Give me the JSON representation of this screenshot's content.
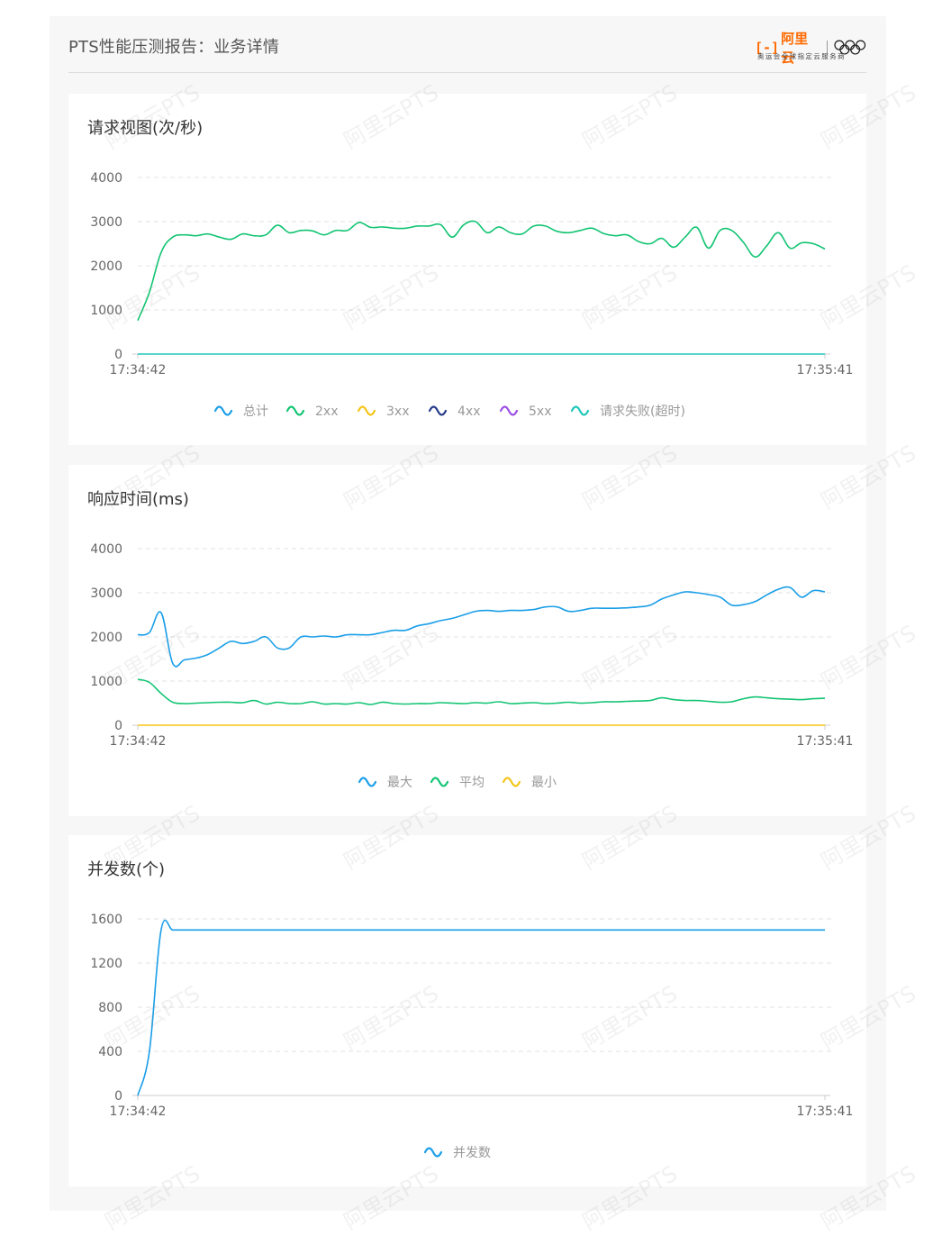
{
  "header": {
    "title": "PTS性能压测报告：业务详情",
    "brand_mark": "[-]",
    "brand_name": "阿里云",
    "brand_sub": "奥运会全球指定云服务商"
  },
  "watermark_text": "阿里云PTS",
  "colors": {
    "total": "#1a9ee8",
    "c2xx": "#12c473",
    "c3xx": "#f5c518",
    "c4xx": "#263a8a",
    "c5xx": "#9b4ee3",
    "fail": "#1ec8b8",
    "grid": "#e3e3e3",
    "axis": "#cccccc"
  },
  "chart_data": [
    {
      "type": "line",
      "title": "请求视图(次/秒)",
      "x_ticks": [
        "17:34:42",
        "17:35:41"
      ],
      "y_ticks": [
        "0",
        "1000",
        "2000",
        "3000",
        "4000"
      ],
      "ylim": [
        0,
        4000
      ],
      "grid": true,
      "legend_position": "bottom",
      "x_points": 60,
      "series": [
        {
          "name": "总计",
          "color": "#1a9ee8",
          "values": []
        },
        {
          "name": "2xx",
          "color": "#12c473",
          "values": [
            760,
            1400,
            2300,
            2650,
            2700,
            2680,
            2720,
            2650,
            2600,
            2720,
            2680,
            2700,
            2920,
            2750,
            2800,
            2790,
            2700,
            2800,
            2800,
            2980,
            2870,
            2880,
            2850,
            2850,
            2900,
            2900,
            2930,
            2650,
            2930,
            3000,
            2750,
            2880,
            2750,
            2720,
            2900,
            2900,
            2780,
            2750,
            2800,
            2850,
            2730,
            2680,
            2700,
            2550,
            2500,
            2620,
            2420,
            2650,
            2870,
            2400,
            2800,
            2800,
            2530,
            2200,
            2450,
            2750,
            2400,
            2520,
            2500,
            2380
          ]
        },
        {
          "name": "3xx",
          "color": "#f5c518",
          "values": []
        },
        {
          "name": "4xx",
          "color": "#263a8a",
          "values": []
        },
        {
          "name": "5xx",
          "color": "#9b4ee3",
          "values": []
        },
        {
          "name": "请求失败(超时)",
          "color": "#1ec8b8",
          "values": [
            0,
            0,
            0,
            0,
            0,
            0,
            0,
            0,
            0,
            0,
            0,
            0,
            0,
            0,
            0,
            0,
            0,
            0,
            0,
            0,
            0,
            0,
            0,
            0,
            0,
            0,
            0,
            0,
            0,
            0,
            0,
            0,
            0,
            0,
            0,
            0,
            0,
            0,
            0,
            0,
            0,
            0,
            0,
            0,
            0,
            0,
            0,
            0,
            0,
            0,
            0,
            0,
            0,
            0,
            0,
            0,
            0,
            0,
            0,
            0
          ]
        }
      ]
    },
    {
      "type": "line",
      "title": "响应时间(ms)",
      "x_ticks": [
        "17:34:42",
        "17:35:41"
      ],
      "y_ticks": [
        "0",
        "1000",
        "2000",
        "3000",
        "4000"
      ],
      "ylim": [
        0,
        4000
      ],
      "grid": true,
      "legend_position": "bottom",
      "x_points": 60,
      "series": [
        {
          "name": "最大",
          "color": "#1a9ee8",
          "values": [
            2050,
            2100,
            2550,
            1400,
            1480,
            1520,
            1600,
            1750,
            1900,
            1850,
            1900,
            2000,
            1750,
            1750,
            2000,
            2000,
            2020,
            2000,
            2050,
            2050,
            2050,
            2100,
            2150,
            2150,
            2250,
            2300,
            2370,
            2420,
            2500,
            2580,
            2600,
            2580,
            2600,
            2600,
            2620,
            2680,
            2680,
            2580,
            2600,
            2650,
            2650,
            2650,
            2660,
            2680,
            2720,
            2860,
            2950,
            3020,
            3000,
            2960,
            2900,
            2720,
            2730,
            2800,
            2950,
            3080,
            3120,
            2900,
            3050,
            3020
          ]
        },
        {
          "name": "平均",
          "color": "#12c473",
          "values": [
            1040,
            970,
            720,
            520,
            490,
            500,
            510,
            520,
            520,
            510,
            560,
            480,
            520,
            490,
            490,
            530,
            480,
            490,
            480,
            510,
            470,
            520,
            490,
            480,
            490,
            490,
            510,
            500,
            490,
            510,
            500,
            530,
            490,
            500,
            510,
            490,
            500,
            520,
            500,
            510,
            530,
            530,
            540,
            550,
            560,
            620,
            580,
            560,
            560,
            540,
            520,
            530,
            600,
            640,
            620,
            600,
            590,
            580,
            600,
            610
          ]
        },
        {
          "name": "最小",
          "color": "#f5c518",
          "values": [
            0,
            0,
            0,
            0,
            0,
            0,
            0,
            0,
            0,
            0,
            0,
            0,
            0,
            0,
            0,
            0,
            0,
            0,
            0,
            0,
            0,
            0,
            0,
            0,
            0,
            0,
            0,
            0,
            0,
            0,
            0,
            0,
            0,
            0,
            0,
            0,
            0,
            0,
            0,
            0,
            0,
            0,
            0,
            0,
            0,
            0,
            0,
            0,
            0,
            0,
            0,
            0,
            0,
            0,
            0,
            0,
            0,
            0,
            0,
            0
          ]
        }
      ]
    },
    {
      "type": "line",
      "title": "并发数(个)",
      "x_ticks": [
        "17:34:42",
        "17:35:41"
      ],
      "y_ticks": [
        "0",
        "400",
        "800",
        "1200",
        "1600"
      ],
      "ylim": [
        0,
        1600
      ],
      "grid": true,
      "legend_position": "bottom",
      "x_points": 60,
      "series": [
        {
          "name": "并发数",
          "color": "#1a9ee8",
          "values": [
            0,
            400,
            1500,
            1500,
            1500,
            1500,
            1500,
            1500,
            1500,
            1500,
            1500,
            1500,
            1500,
            1500,
            1500,
            1500,
            1500,
            1500,
            1500,
            1500,
            1500,
            1500,
            1500,
            1500,
            1500,
            1500,
            1500,
            1500,
            1500,
            1500,
            1500,
            1500,
            1500,
            1500,
            1500,
            1500,
            1500,
            1500,
            1500,
            1500,
            1500,
            1500,
            1500,
            1500,
            1500,
            1500,
            1500,
            1500,
            1500,
            1500,
            1500,
            1500,
            1500,
            1500,
            1500,
            1500,
            1500,
            1500,
            1500,
            1500
          ]
        }
      ]
    }
  ]
}
